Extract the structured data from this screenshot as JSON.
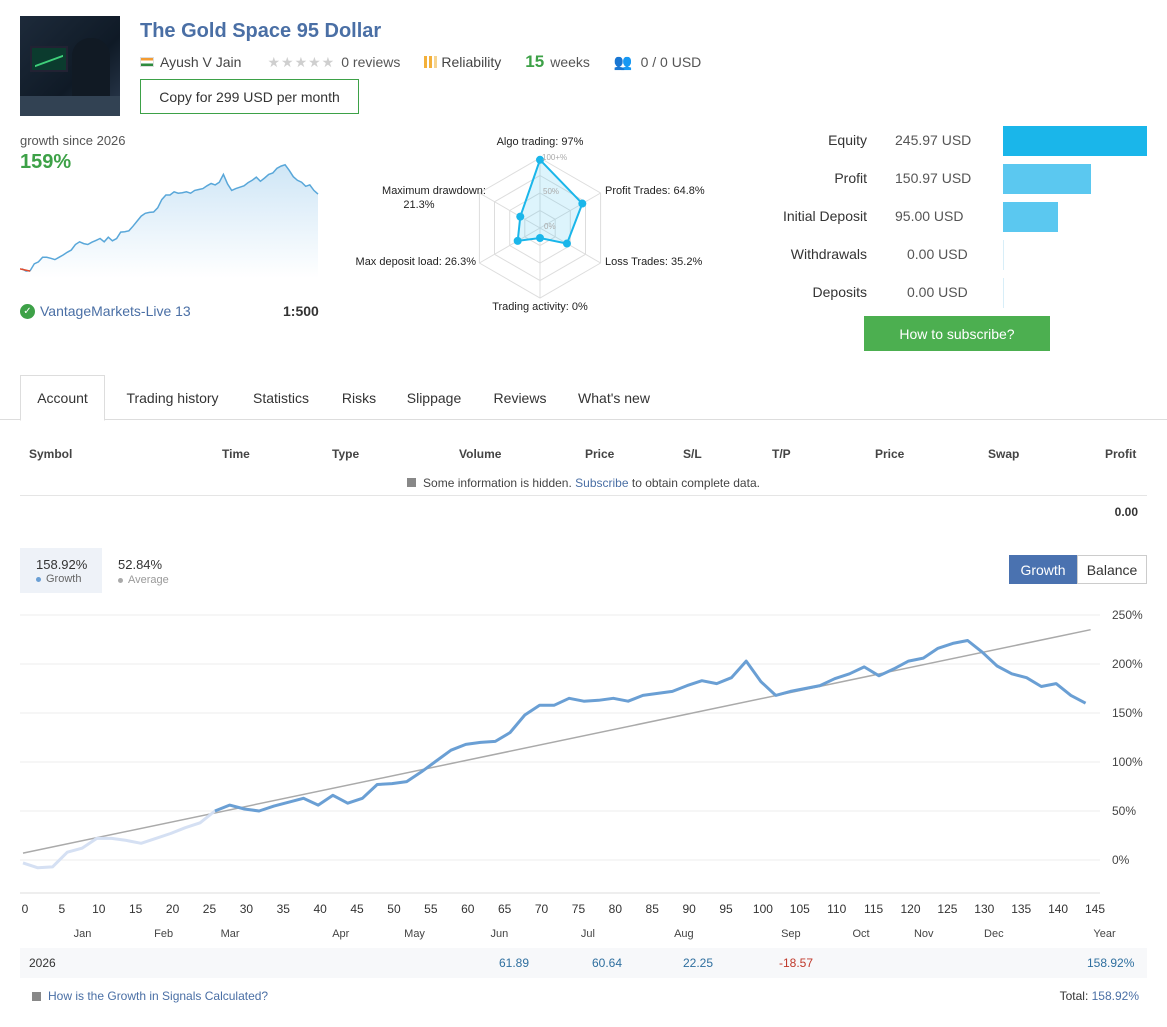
{
  "signal": {
    "title": "The Gold Space 95 Dollar",
    "author": "Ayush V Jain",
    "reviews": "0 reviews",
    "reliability_label": "Reliability",
    "weeks_num": "15",
    "weeks_label": "weeks",
    "subscribers": "0 / 0 USD",
    "copy_button": "Copy for 299 USD per month"
  },
  "growth_summary": {
    "since": "growth since 2026",
    "pct": "159%",
    "broker": "VantageMarkets-Live 13",
    "leverage": "1:500"
  },
  "radar": {
    "labels": {
      "algo": "Algo trading: 97%",
      "profit": "Profit Trades: 64.8%",
      "loss": "Loss Trades: 35.2%",
      "activity": "Trading activity: 0%",
      "load": "Max deposit load: 26.3%",
      "drawdown1": "Maximum drawdown:",
      "drawdown2": "21.3%"
    },
    "scale": {
      "top": "100+%",
      "mid": "50%",
      "zero": "0%"
    },
    "values": [
      97,
      64.8,
      35.2,
      0,
      26.3,
      21.3
    ]
  },
  "stats": [
    {
      "label": "Equity",
      "value": "245.97 USD",
      "fraction": 1.0,
      "color": "#1ab6ea"
    },
    {
      "label": "Profit",
      "value": "150.97 USD",
      "fraction": 0.61,
      "color": "#5bc8f0"
    },
    {
      "label": "Initial Deposit",
      "value": "95.00 USD",
      "fraction": 0.38,
      "color": "#5bc8f0"
    },
    {
      "label": "Withdrawals",
      "value": "0.00 USD",
      "fraction": 0,
      "color": "#5bc8f0"
    },
    {
      "label": "Deposits",
      "value": "0.00 USD",
      "fraction": 0,
      "color": "#5bc8f0"
    }
  ],
  "subscribe_button": "How to subscribe?",
  "tabs": [
    "Account",
    "Trading history",
    "Statistics",
    "Risks",
    "Slippage",
    "Reviews",
    "What's new"
  ],
  "table": {
    "columns": [
      "Symbol",
      "Time",
      "Type",
      "Volume",
      "Price",
      "S/L",
      "T/P",
      "Price",
      "Swap",
      "Profit"
    ],
    "hidden_note_pre": "Some information is hidden.",
    "hidden_note_link": "Subscribe",
    "hidden_note_post": "to obtain complete data.",
    "profit_total": "0.00"
  },
  "chart_legend": {
    "growth_value": "158.92%",
    "growth_label": "Growth",
    "average_value": "52.84%",
    "average_label": "Average",
    "toggle_growth": "Growth",
    "toggle_balance": "Balance"
  },
  "chart_data": {
    "type": "line",
    "x_ticks": [
      0,
      5,
      10,
      15,
      20,
      25,
      30,
      35,
      40,
      45,
      50,
      55,
      60,
      65,
      70,
      75,
      80,
      85,
      90,
      95,
      100,
      105,
      110,
      115,
      120,
      125,
      130,
      135,
      140,
      145
    ],
    "y_ticks": [
      "0%",
      "50%",
      "100%",
      "150%",
      "200%",
      "250%"
    ],
    "y_tick_values": [
      0,
      50,
      100,
      150,
      200,
      250
    ],
    "xlim": [
      0,
      145
    ],
    "ylim": [
      -20,
      250
    ],
    "months": [
      "Jan",
      "Feb",
      "Mar",
      "Apr",
      "May",
      "Jun",
      "Jul",
      "Aug",
      "Sep",
      "Oct",
      "Nov",
      "Dec",
      "Year"
    ],
    "series": [
      {
        "name": "Growth",
        "x": [
          0,
          2,
          4,
          6,
          8,
          10,
          12,
          14,
          16,
          18,
          20,
          22,
          24,
          26,
          28,
          30,
          32,
          34,
          36,
          38,
          40,
          42,
          44,
          46,
          48,
          50,
          52,
          54,
          56,
          58,
          60,
          62,
          64,
          66,
          68,
          70,
          72,
          74,
          76,
          78,
          80,
          82,
          84,
          86,
          88,
          90,
          92,
          94,
          96,
          98,
          100,
          102,
          104,
          106,
          108,
          110,
          112,
          114,
          116,
          118,
          120,
          122,
          124,
          126,
          128,
          130,
          132,
          134,
          136,
          138,
          140,
          142,
          144
        ],
        "values": [
          -3,
          -8,
          -7,
          8,
          12,
          22,
          22,
          20,
          17,
          22,
          27,
          33,
          38,
          50,
          56,
          52,
          50,
          55,
          59,
          63,
          56,
          66,
          58,
          63,
          77,
          78,
          80,
          90,
          101,
          112,
          118,
          120,
          121,
          130,
          148,
          158,
          158,
          165,
          162,
          163,
          165,
          162,
          168,
          170,
          172,
          178,
          183,
          180,
          186,
          203,
          182,
          168,
          172,
          175,
          178,
          185,
          190,
          197,
          188,
          195,
          203,
          206,
          216,
          221,
          224,
          212,
          198,
          190,
          186,
          177,
          180,
          168,
          160
        ]
      },
      {
        "name": "Average",
        "x": [
          0,
          144
        ],
        "values": [
          7,
          235
        ]
      }
    ]
  },
  "year_row": {
    "year": "2026",
    "jun": "61.89",
    "jul": "60.64",
    "aug": "22.25",
    "sep": "-18.57",
    "year_total": "158.92%"
  },
  "footer": {
    "calc_link": "How is the Growth in Signals Calculated?",
    "total_label": "Total:",
    "total_value": "158.92%"
  }
}
